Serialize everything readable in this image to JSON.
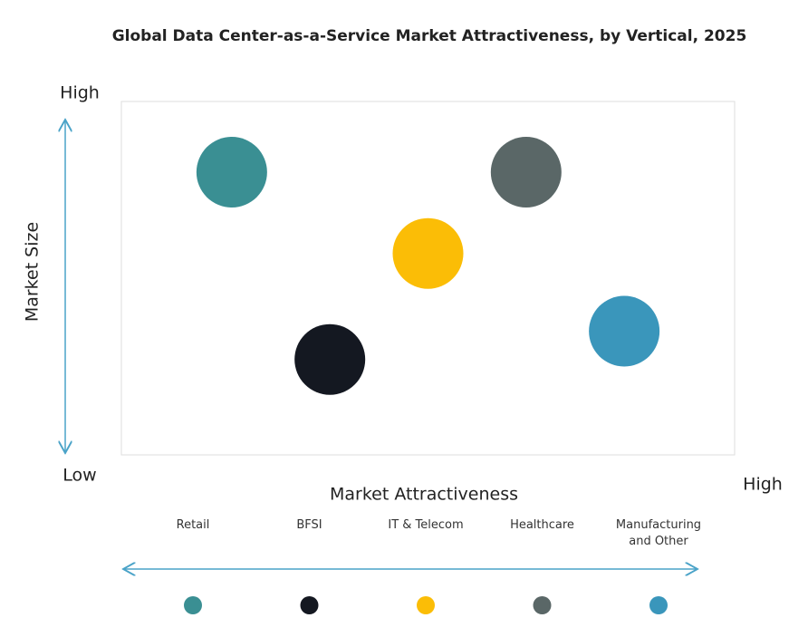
{
  "chart_data": {
    "type": "bubble",
    "title": "Global Data Center-as-a-Service Market Attractiveness,  by Vertical, 2025",
    "x_label": "Market Attractiveness",
    "y_label": "Market Size",
    "categories": [
      "Retail",
      "BFSI",
      "IT & Telecom",
      "Healthcare",
      "Manufacturing and Other"
    ],
    "x": [
      1.8,
      3.4,
      5.0,
      6.6,
      8.2
    ],
    "values": [
      8.0,
      2.7,
      5.7,
      8.0,
      3.5
    ],
    "colors": [
      "#3a8f93",
      "#141821",
      "#fbbd06",
      "#5a6767",
      "#3a96bb"
    ],
    "xlim": [
      0,
      10
    ],
    "ylim": [
      0,
      10
    ],
    "xticks": [
      {
        "value": 10,
        "label": "High"
      }
    ],
    "yticks": [
      {
        "value": 0,
        "label": "Low"
      },
      {
        "value": 10,
        "label": "High"
      }
    ]
  }
}
